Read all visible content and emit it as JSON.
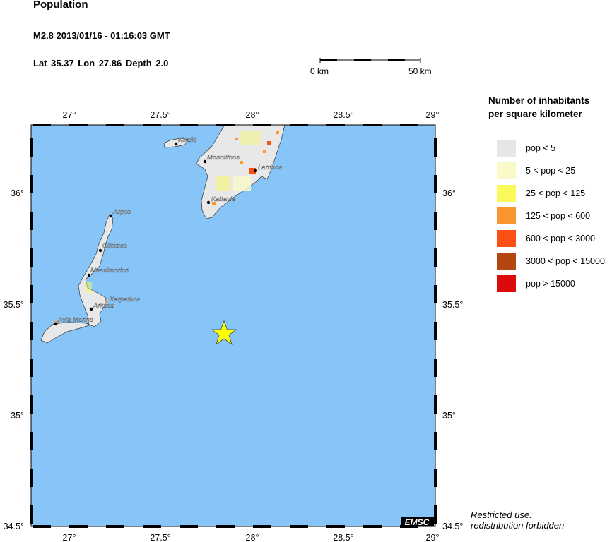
{
  "header": {
    "title": "Population",
    "event": "M2.8  2013/01/16 - 01:16:03 GMT",
    "coords": "Lat 35.37    Lon  27.86    Depth  2.0"
  },
  "scale_bar": {
    "start_label": "0 km",
    "end_label": "50 km"
  },
  "map": {
    "ocean_color": "#87c5f8",
    "land_color": "#e8e8e8",
    "epicenter_color": "#ffff00",
    "lon_ticks": [
      "27°",
      "27.5°",
      "28°",
      "28.5°",
      "29°"
    ],
    "lat_ticks": [
      "36°",
      "35.5°",
      "35°",
      "34.5°"
    ],
    "places": [
      "Khalki",
      "Monolithos",
      "Lardhos",
      "Kattavia",
      "Argos",
      "Olimbos",
      "Mesoknorion",
      "Karpathos",
      "Arkasa",
      "Ayia Marina"
    ],
    "badge": "EMSC"
  },
  "legend": {
    "title_line1": "Number of inhabitants",
    "title_line2": "per square kilometer",
    "items": [
      {
        "label": "pop < 5",
        "color": "#e6e6e6"
      },
      {
        "label": "5 < pop < 25",
        "color": "#fafac8"
      },
      {
        "label": "25 < pop < 125",
        "color": "#fafa5a"
      },
      {
        "label": "125 < pop < 600",
        "color": "#fa9632"
      },
      {
        "label": "600 < pop < 3000",
        "color": "#fa5014"
      },
      {
        "label": "3000 < pop < 15000",
        "color": "#b4460f"
      },
      {
        "label": "pop > 15000",
        "color": "#dc0a0a"
      }
    ]
  },
  "footer": {
    "line1": "Restricted use:",
    "line2": "redistribution forbidden"
  }
}
